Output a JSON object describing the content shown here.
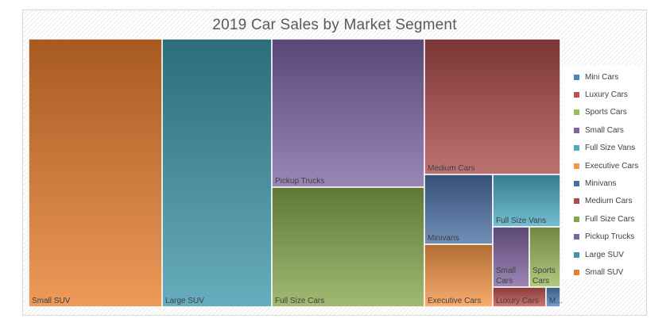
{
  "chart_data": {
    "type": "treemap",
    "title": "2019 Car Sales by Market Segment",
    "legend_position": "right",
    "series": [
      {
        "name": "Small SUV",
        "value": 151.5,
        "color": "#e87d2c",
        "label_lines": [
          "Small SUV"
        ]
      },
      {
        "name": "Large SUV",
        "value": 123.8,
        "color": "#3d96ab",
        "label_lines": [
          "Large SUV"
        ]
      },
      {
        "name": "Pickup Trucks",
        "value": 73.9,
        "color": "#7b64a3",
        "label_lines": [
          "Pickup Trucks"
        ]
      },
      {
        "name": "Full Size Cars",
        "value": 79.0,
        "color": "#86a64c",
        "label_lines": [
          "Full Size Cars"
        ]
      },
      {
        "name": "Medium Cars",
        "value": 64.1,
        "color": "#ab4a4a",
        "label_lines": [
          "Medium Cars"
        ]
      },
      {
        "name": "Minivans",
        "value": 18.6,
        "color": "#4a6fa5",
        "label_lines": [
          "Minivans"
        ]
      },
      {
        "name": "Executive Cars",
        "value": 17.2,
        "color": "#f79646",
        "label_lines": [
          "Executive Cars"
        ]
      },
      {
        "name": "Full Size Vans",
        "value": 14.8,
        "color": "#4bacc6",
        "label_lines": [
          "Full Size Vans"
        ]
      },
      {
        "name": "Small Cars",
        "value": 7.2,
        "color": "#8064a2",
        "label_lines": [
          "Small",
          "Cars"
        ]
      },
      {
        "name": "Sports Cars",
        "value": 6.3,
        "color": "#9bbb59",
        "label_lines": [
          "Sports",
          "Cars"
        ]
      },
      {
        "name": "Luxury Cars",
        "value": 2.0,
        "color": "#c0504d",
        "label_lines": [
          "Luxury Cars"
        ]
      },
      {
        "name": "Mini Cars",
        "value": 0.5,
        "color": "#4f81bd",
        "label_lines": [
          "M..."
        ]
      }
    ],
    "legend": [
      "Mini Cars",
      "Luxury Cars",
      "Sports Cars",
      "Small Cars",
      "Full Size Vans",
      "Executive Cars",
      "Minivans",
      "Medium Cars",
      "Full Size Cars",
      "Pickup Trucks",
      "Large SUV",
      "Small SUV"
    ]
  }
}
